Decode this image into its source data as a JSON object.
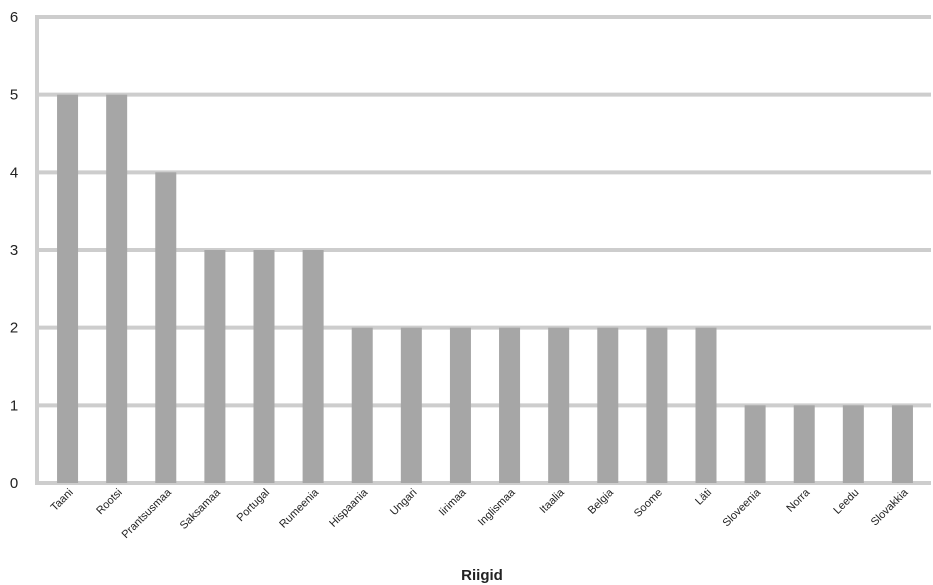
{
  "chart_data": {
    "type": "bar",
    "categories": [
      "Taani",
      "Rootsi",
      "Prantsusmaa",
      "Saksamaa",
      "Portugal",
      "Rumeenia",
      "Hispaania",
      "Ungari",
      "Iirimaa",
      "Inglismaa",
      "Itaalia",
      "Belgia",
      "Soome",
      "Läti",
      "Sloveenia",
      "Norra",
      "Leedu",
      "Slovakkia"
    ],
    "values": [
      5,
      5,
      4,
      3,
      3,
      3,
      2,
      2,
      2,
      2,
      2,
      2,
      2,
      2,
      1,
      1,
      1,
      1
    ],
    "title": "",
    "xlabel": "Riigid",
    "ylabel": "",
    "ylim": [
      0,
      6
    ],
    "yticks": [
      "0",
      "1",
      "2",
      "3",
      "4",
      "5",
      "6"
    ],
    "grid": true,
    "legend": "none",
    "colors": {
      "bar": "#a6a6a6",
      "grid": "#cdcdcd",
      "axis": "#cdcdcd"
    }
  }
}
